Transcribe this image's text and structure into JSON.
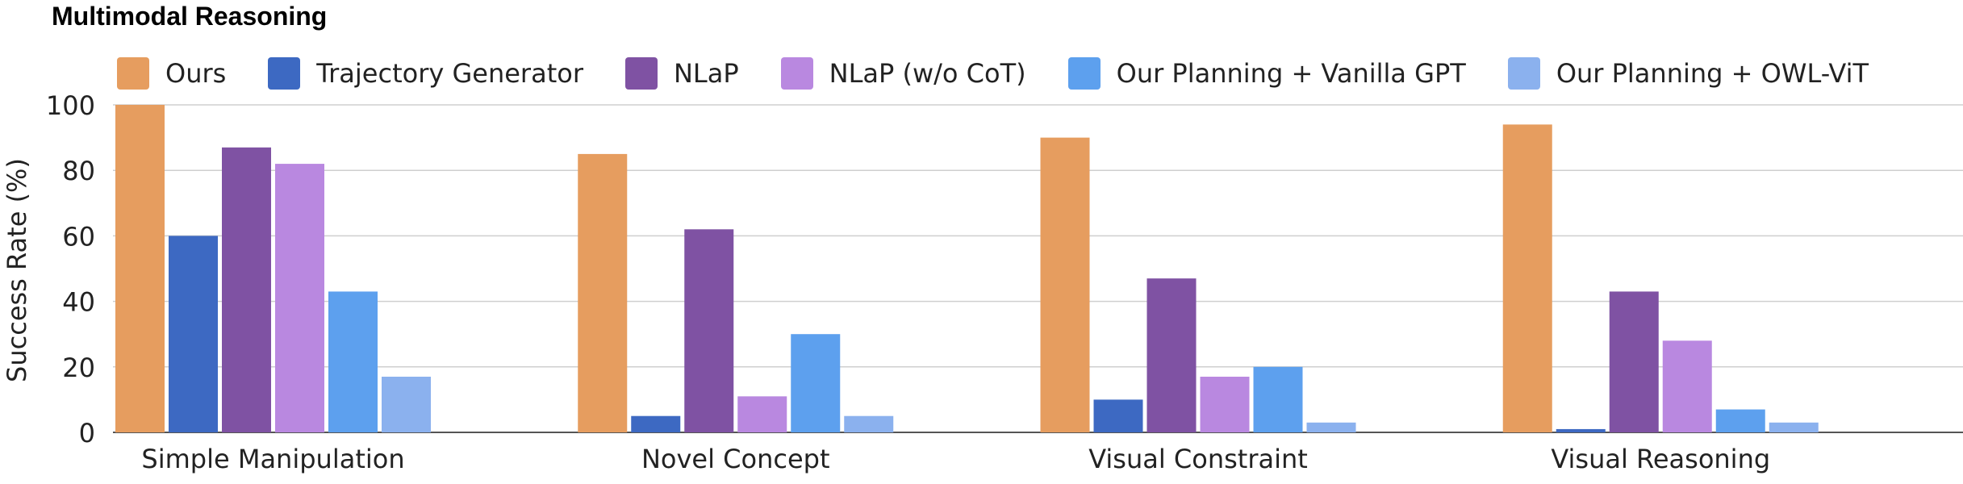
{
  "title": "Multimodal Reasoning",
  "chart_data": {
    "type": "bar",
    "ylabel": "Success Rate (%)",
    "xlabel": "",
    "ylim": [
      0,
      100
    ],
    "yticks": [
      0,
      20,
      40,
      60,
      80,
      100
    ],
    "grid": true,
    "legend_position": "top",
    "categories": [
      "Simple Manipulation",
      "Novel Concept",
      "Visual Constraint",
      "Visual Reasoning"
    ],
    "series": [
      {
        "name": "Ours",
        "color": "#E69D5F",
        "values": [
          100,
          85,
          90,
          94
        ]
      },
      {
        "name": "Trajectory Generator",
        "color": "#3D69C2",
        "values": [
          60,
          5,
          10,
          1
        ]
      },
      {
        "name": "NLaP",
        "color": "#7F52A3",
        "values": [
          87,
          62,
          47,
          43
        ]
      },
      {
        "name": "NLaP (w/o CoT)",
        "color": "#B988E0",
        "values": [
          82,
          11,
          17,
          28
        ]
      },
      {
        "name": "Our Planning + Vanilla GPT",
        "color": "#5DA0EE",
        "values": [
          43,
          30,
          20,
          7
        ]
      },
      {
        "name": "Our Planning + OWL-ViT",
        "color": "#8BB1EE",
        "values": [
          17,
          5,
          3,
          3
        ]
      }
    ]
  }
}
